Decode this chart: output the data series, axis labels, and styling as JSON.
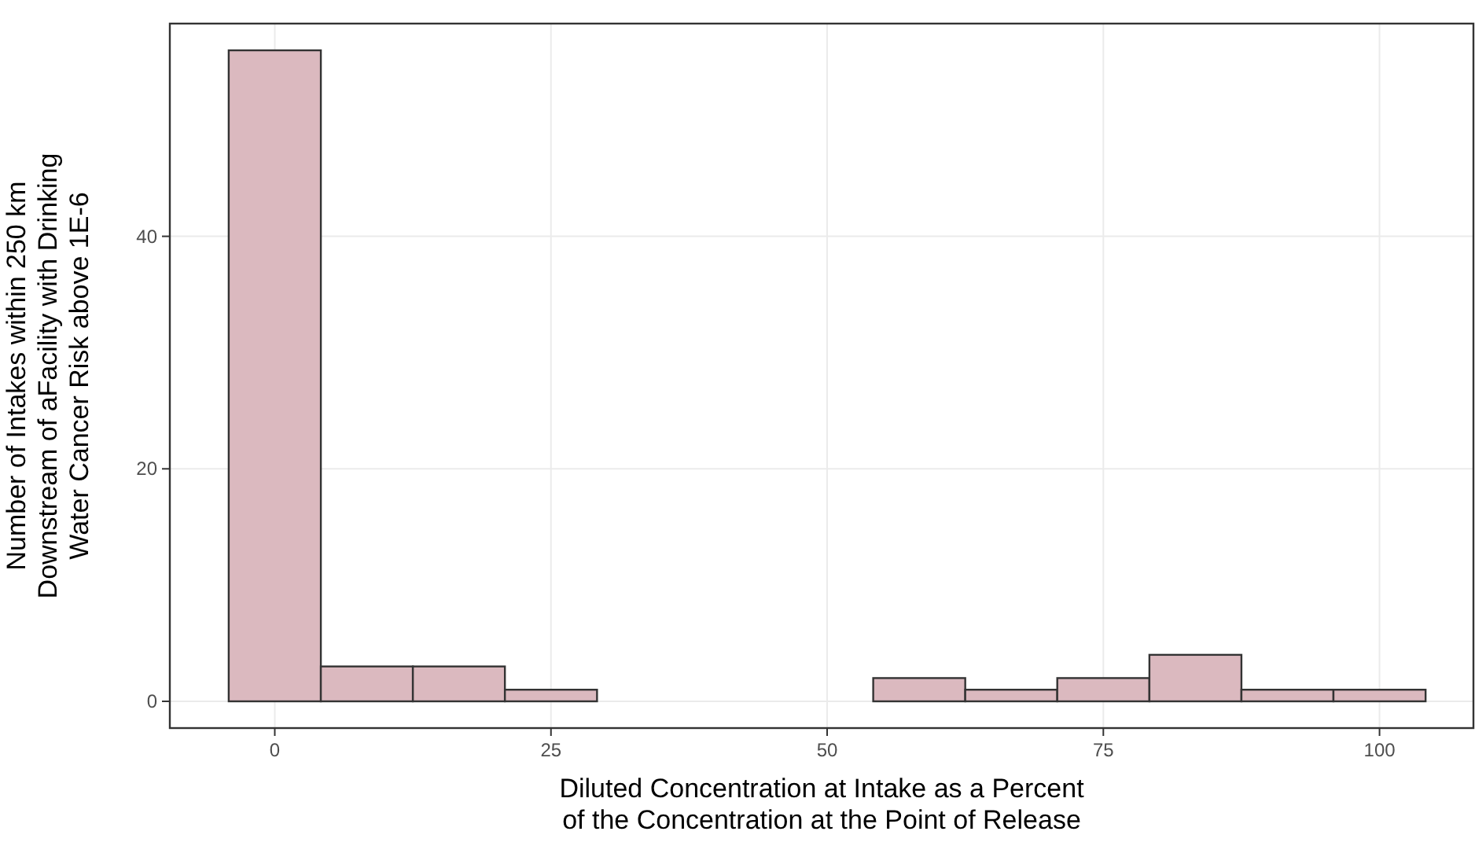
{
  "chart_data": {
    "type": "histogram",
    "xlabel": "Diluted Concentration at Intake as a Percent\nof the Concentration at the Point of Release",
    "ylabel": "Number of Intakes within 250 km\nDownstream of aFacility with Drinking\nWater Cancer Risk above 1E-6",
    "bins": [
      -4.17,
      4.17,
      12.5,
      20.83,
      29.17,
      37.5,
      45.83,
      54.17,
      62.5,
      70.83,
      79.17,
      87.5,
      95.83,
      104.17
    ],
    "values": [
      56,
      3,
      3,
      1,
      0,
      0,
      0,
      2,
      1,
      2,
      4,
      1,
      1
    ],
    "color": "#dbb9bf",
    "xlim": [
      -9.5,
      108.5
    ],
    "xticks": [
      0,
      25,
      50,
      75,
      100
    ],
    "ylim": [
      -2.3,
      58.3
    ],
    "yticks": [
      0,
      20,
      40
    ],
    "grid": true
  }
}
